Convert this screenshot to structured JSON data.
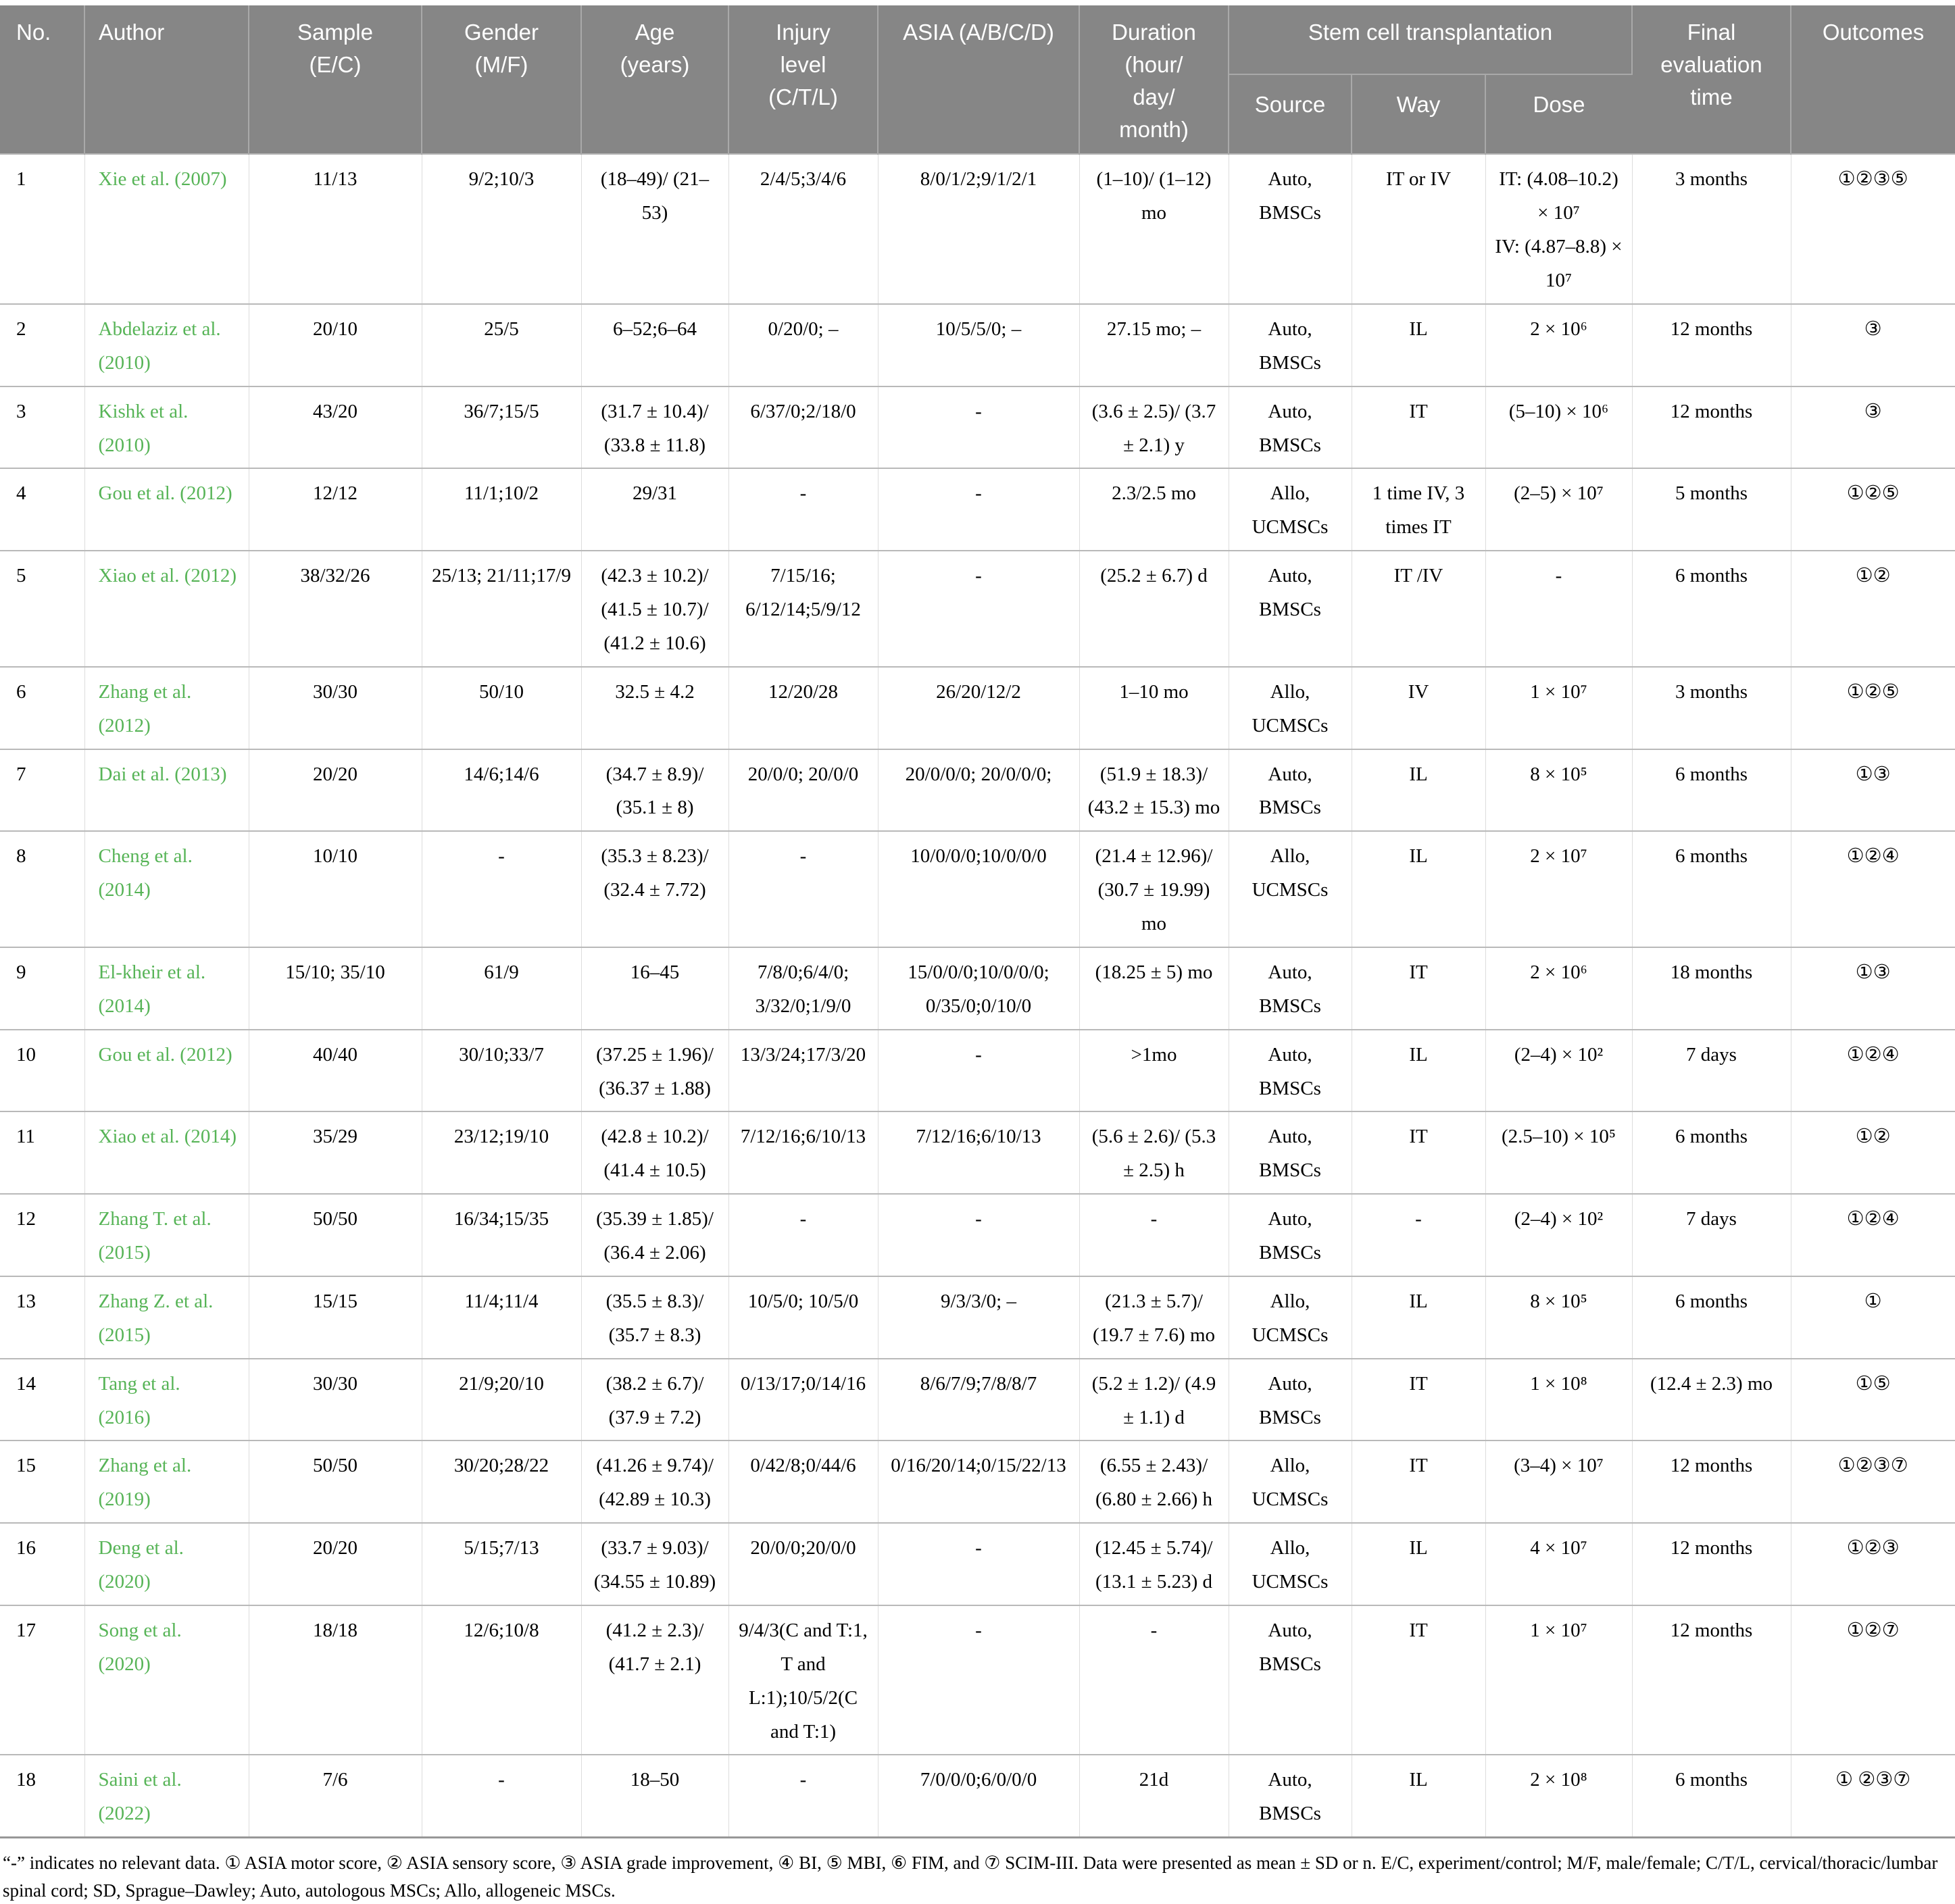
{
  "table": {
    "header": {
      "no": "No.",
      "author": "Author",
      "sample": "Sample\n(E/C)",
      "gender": "Gender\n(M/F)",
      "age": "Age\n(years)",
      "injury": "Injury\nlevel\n(C/T/L)",
      "asia": "ASIA (A/B/C/D)",
      "duration": "Duration\n(hour/\nday/\nmonth)",
      "group": "Stem cell transplantation",
      "source": "Source",
      "way": "Way",
      "dose": "Dose",
      "final": "Final\nevaluation\ntime",
      "outcomes": "Outcomes"
    },
    "rows": [
      {
        "no": "1",
        "author": "Xie et al. (2007)",
        "sample": "11/13",
        "gender": "9/2;10/3",
        "age": "(18–49)/ (21–53)",
        "injury": "2/4/5;3/4/6",
        "asia": "8/0/1/2;9/1/2/1",
        "duration": "(1–10)/ (1–12) mo",
        "source": "Auto,\nBMSCs",
        "way": "IT or IV",
        "dose": "IT: (4.08–10.2) × 10⁷\nIV: (4.87–8.8) × 10⁷",
        "final": "3 months",
        "outcomes": "①②③⑤"
      },
      {
        "no": "2",
        "author": "Abdelaziz et al.\n(2010)",
        "sample": "20/10",
        "gender": "25/5",
        "age": "6–52;6–64",
        "injury": "0/20/0; –",
        "asia": "10/5/5/0; –",
        "duration": "27.15 mo; –",
        "source": "Auto,\nBMSCs",
        "way": "IL",
        "dose": "2 × 10⁶",
        "final": "12 months",
        "outcomes": "③"
      },
      {
        "no": "3",
        "author": "Kishk et al.\n(2010)",
        "sample": "43/20",
        "gender": "36/7;15/5",
        "age": "(31.7 ± 10.4)/ (33.8 ± 11.8)",
        "injury": "6/37/0;2/18/0",
        "asia": "-",
        "duration": "(3.6 ± 2.5)/ (3.7 ± 2.1) y",
        "source": "Auto,\nBMSCs",
        "way": "IT",
        "dose": "(5–10) × 10⁶",
        "final": "12 months",
        "outcomes": "③"
      },
      {
        "no": "4",
        "author": "Gou et al. (2012)",
        "sample": "12/12",
        "gender": "11/1;10/2",
        "age": "29/31",
        "injury": "-",
        "asia": "-",
        "duration": "2.3/2.5 mo",
        "source": "Allo,\nUCMSCs",
        "way": "1 time IV, 3 times IT",
        "dose": "(2–5) × 10⁷",
        "final": "5 months",
        "outcomes": "①②⑤"
      },
      {
        "no": "5",
        "author": "Xiao et al. (2012)",
        "sample": "38/32/26",
        "gender": "25/13; 21/11;17/9",
        "age": "(42.3 ± 10.2)/ (41.5 ± 10.7)/ (41.2 ± 10.6)",
        "injury": "7/15/16; 6/12/14;5/9/12",
        "asia": "-",
        "duration": "(25.2 ± 6.7) d",
        "source": "Auto,\nBMSCs",
        "way": "IT /IV",
        "dose": "-",
        "final": "6 months",
        "outcomes": "①②"
      },
      {
        "no": "6",
        "author": "Zhang et al.\n(2012)",
        "sample": "30/30",
        "gender": "50/10",
        "age": "32.5 ± 4.2",
        "injury": "12/20/28",
        "asia": "26/20/12/2",
        "duration": "1–10 mo",
        "source": "Allo,\nUCMSCs",
        "way": "IV",
        "dose": "1 × 10⁷",
        "final": "3 months",
        "outcomes": "①②⑤"
      },
      {
        "no": "7",
        "author": "Dai et al. (2013)",
        "sample": "20/20",
        "gender": "14/6;14/6",
        "age": "(34.7 ± 8.9)/ (35.1 ± 8)",
        "injury": "20/0/0; 20/0/0",
        "asia": "20/0/0/0; 20/0/0/0;",
        "duration": "(51.9 ± 18.3)/ (43.2 ± 15.3) mo",
        "source": "Auto,\nBMSCs",
        "way": "IL",
        "dose": "8 × 10⁵",
        "final": "6 months",
        "outcomes": "①③"
      },
      {
        "no": "8",
        "author": "Cheng et al.\n(2014)",
        "sample": "10/10",
        "gender": "-",
        "age": "(35.3 ± 8.23)/ (32.4 ± 7.72)",
        "injury": "-",
        "asia": "10/0/0/0;10/0/0/0",
        "duration": "(21.4 ± 12.96)/ (30.7 ± 19.99) mo",
        "source": "Allo,\nUCMSCs",
        "way": "IL",
        "dose": "2 × 10⁷",
        "final": "6 months",
        "outcomes": "①②④"
      },
      {
        "no": "9",
        "author": "El-kheir et al.\n(2014)",
        "sample": "15/10; 35/10",
        "gender": "61/9",
        "age": "16–45",
        "injury": "7/8/0;6/4/0; 3/32/0;1/9/0",
        "asia": "15/0/0/0;10/0/0/0; 0/35/0;0/10/0",
        "duration": "(18.25 ± 5) mo",
        "source": "Auto,\nBMSCs",
        "way": "IT",
        "dose": "2 × 10⁶",
        "final": "18 months",
        "outcomes": "①③"
      },
      {
        "no": "10",
        "author": "Gou et al. (2012)",
        "sample": "40/40",
        "gender": "30/10;33/7",
        "age": "(37.25 ± 1.96)/ (36.37 ± 1.88)",
        "injury": "13/3/24;17/3/20",
        "asia": "-",
        "duration": ">1mo",
        "source": "Auto,\nBMSCs",
        "way": "IL",
        "dose": "(2–4) × 10²",
        "final": "7 days",
        "outcomes": "①②④"
      },
      {
        "no": "11",
        "author": "Xiao et al. (2014)",
        "sample": "35/29",
        "gender": "23/12;19/10",
        "age": "(42.8 ± 10.2)/ (41.4 ± 10.5)",
        "injury": "7/12/16;6/10/13",
        "asia": "7/12/16;6/10/13",
        "duration": "(5.6 ± 2.6)/ (5.3 ± 2.5) h",
        "source": "Auto,\nBMSCs",
        "way": "IT",
        "dose": "(2.5–10) × 10⁵",
        "final": "6 months",
        "outcomes": "①②"
      },
      {
        "no": "12",
        "author": "Zhang T. et al.\n(2015)",
        "sample": "50/50",
        "gender": "16/34;15/35",
        "age": "(35.39 ± 1.85)/ (36.4 ± 2.06)",
        "injury": "-",
        "asia": "-",
        "duration": "-",
        "source": "Auto,\nBMSCs",
        "way": "-",
        "dose": "(2–4) × 10²",
        "final": "7 days",
        "outcomes": "①②④"
      },
      {
        "no": "13",
        "author": "Zhang Z. et al.\n(2015)",
        "sample": "15/15",
        "gender": "11/4;11/4",
        "age": "(35.5 ± 8.3)/ (35.7 ± 8.3)",
        "injury": "10/5/0; 10/5/0",
        "asia": "9/3/3/0; –",
        "duration": "(21.3 ± 5.7)/ (19.7 ± 7.6) mo",
        "source": "Allo,\nUCMSCs",
        "way": "IL",
        "dose": "8 × 10⁵",
        "final": "6 months",
        "outcomes": "①"
      },
      {
        "no": "14",
        "author": "Tang et al.\n(2016)",
        "sample": "30/30",
        "gender": "21/9;20/10",
        "age": "(38.2 ± 6.7)/ (37.9 ± 7.2)",
        "injury": "0/13/17;0/14/16",
        "asia": "8/6/7/9;7/8/8/7",
        "duration": "(5.2 ± 1.2)/ (4.9 ± 1.1) d",
        "source": "Auto,\nBMSCs",
        "way": "IT",
        "dose": "1 × 10⁸",
        "final": "(12.4 ± 2.3) mo",
        "outcomes": "①⑤"
      },
      {
        "no": "15",
        "author": "Zhang et al.\n(2019)",
        "sample": "50/50",
        "gender": "30/20;28/22",
        "age": "(41.26 ± 9.74)/ (42.89 ± 10.3)",
        "injury": "0/42/8;0/44/6",
        "asia": "0/16/20/14;0/15/22/13",
        "duration": "(6.55 ± 2.43)/ (6.80 ± 2.66) h",
        "source": "Allo,\nUCMSCs",
        "way": "IT",
        "dose": "(3–4) × 10⁷",
        "final": "12 months",
        "outcomes": "①②③⑦"
      },
      {
        "no": "16",
        "author": "Deng et al.\n(2020)",
        "sample": "20/20",
        "gender": "5/15;7/13",
        "age": "(33.7 ± 9.03)/ (34.55 ± 10.89)",
        "injury": "20/0/0;20/0/0",
        "asia": "-",
        "duration": "(12.45 ± 5.74)/ (13.1 ± 5.23) d",
        "source": "Allo,\nUCMSCs",
        "way": "IL",
        "dose": "4 × 10⁷",
        "final": "12 months",
        "outcomes": "①②③"
      },
      {
        "no": "17",
        "author": "Song et al.\n(2020)",
        "sample": "18/18",
        "gender": "12/6;10/8",
        "age": "(41.2 ± 2.3)/ (41.7 ± 2.1)",
        "injury": "9/4/3(C and T:1, T and L:1);10/5/2(C and T:1)",
        "asia": "-",
        "duration": "-",
        "source": "Auto,\nBMSCs",
        "way": "IT",
        "dose": "1 × 10⁷",
        "final": "12 months",
        "outcomes": "①②⑦"
      },
      {
        "no": "18",
        "author": "Saini et al.\n(2022)",
        "sample": "7/6",
        "gender": "-",
        "age": "18–50",
        "injury": "-",
        "asia": "7/0/0/0;6/0/0/0",
        "duration": "21d",
        "source": "Auto,\nBMSCs",
        "way": "IL",
        "dose": "2 × 10⁸",
        "final": "6 months",
        "outcomes": "①  ②③⑦"
      }
    ]
  },
  "footnote": "“-” indicates no relevant data. ① ASIA motor score, ② ASIA sensory score, ③ ASIA grade improvement, ④ BI, ⑤ MBI, ⑥ FIM, and ⑦ SCIM-III. Data were presented as mean ± SD or n. E/C, experiment/control; M/F, male/female; C/T/L, cervical/thoracic/lumbar spinal cord; SD, Sprague–Dawley; Auto, autologous MSCs; Allo, allogeneic MSCs.",
  "colors": {
    "header_bg": "#868686",
    "header_text": "#ffffff",
    "author_link": "#57b457",
    "row_border": "#b9b9b9",
    "column_border": "#dcdcdc"
  }
}
